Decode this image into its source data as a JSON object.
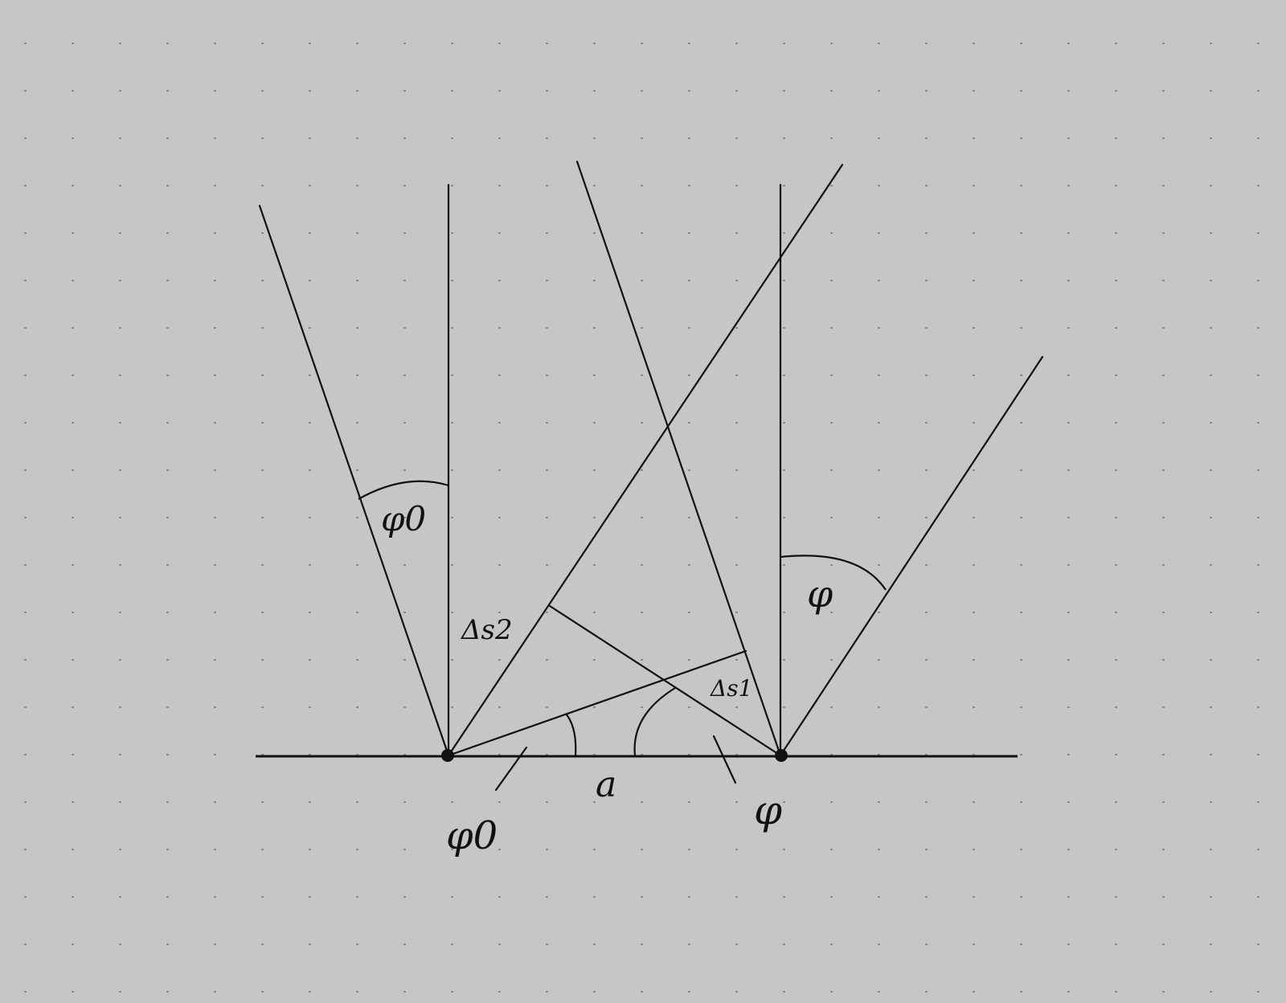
{
  "labels": {
    "phi0_top": "φ0",
    "phi_top": "φ",
    "delta_s2": "Δs2",
    "delta_s1": "Δs1",
    "a": "a",
    "phi0_bottom": "φ0",
    "phi_bottom": "φ"
  },
  "colors": {
    "background": "#c6c6c6",
    "ink": "#111111",
    "grid_dot": "#8a8a8a"
  }
}
